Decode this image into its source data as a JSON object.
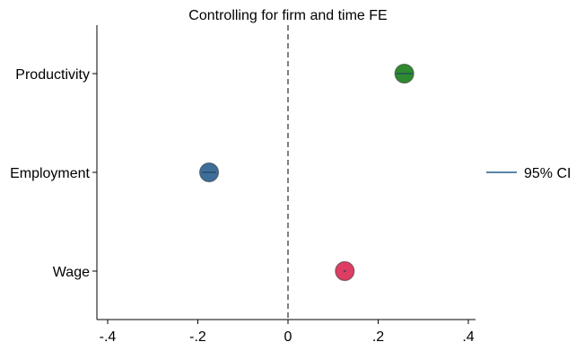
{
  "chart_data": {
    "type": "scatter",
    "title": "Controlling for firm and time FE",
    "xlabel": "",
    "ylabel": "",
    "xlim": [
      -0.4,
      0.4
    ],
    "x_ticks": [
      {
        "value": -0.4,
        "label": "-.4"
      },
      {
        "value": -0.2,
        "label": "-.2"
      },
      {
        "value": 0,
        "label": "0"
      },
      {
        "value": 0.2,
        "label": ".2"
      },
      {
        "value": 0.4,
        "label": ".4"
      }
    ],
    "categories": [
      "Productivity",
      "Employment",
      "Wage"
    ],
    "points": [
      {
        "category": "Productivity",
        "estimate": 0.258,
        "ci": [
          0.24,
          0.276
        ],
        "color": "#2e8a2e"
      },
      {
        "category": "Employment",
        "estimate": -0.175,
        "ci": [
          -0.19,
          -0.16
        ],
        "color": "#3d6e9a"
      },
      {
        "category": "Wage",
        "estimate": 0.126,
        "ci": [
          0.123,
          0.129
        ],
        "color": "#de3d64"
      }
    ],
    "reference_line": {
      "x": 0,
      "style": "dashed"
    },
    "grid": false,
    "legend": {
      "position": "right",
      "entries": [
        {
          "label": "95% CI",
          "color": "#5b86aa"
        }
      ]
    }
  }
}
